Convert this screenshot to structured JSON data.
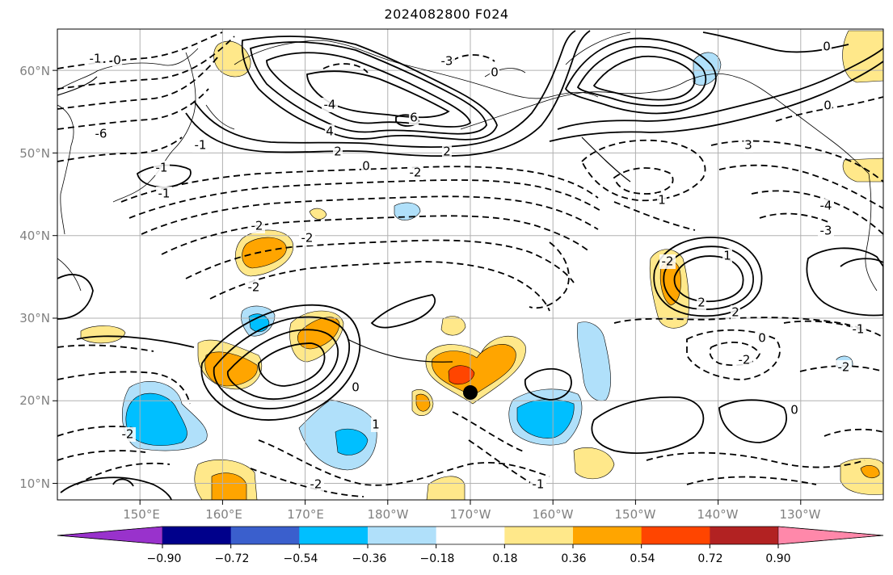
{
  "title": "2024082800 F024",
  "map": {
    "projection": "equirectangular",
    "lon_range_deg_east": [
      140,
      240
    ],
    "lat_range_deg_north": [
      8,
      65
    ],
    "lat_ticks": [
      "10°N",
      "20°N",
      "30°N",
      "40°N",
      "50°N",
      "60°N"
    ],
    "lon_ticks": [
      "150°E",
      "160°E",
      "170°E",
      "180°W",
      "170°W",
      "160°W",
      "150°W",
      "140°W",
      "130°W"
    ],
    "gridlines": true,
    "marker": {
      "lon": 190,
      "lat": 21,
      "color": "#000000"
    },
    "contour_labels": [
      "6",
      "4",
      "2",
      "0",
      "-1",
      "-2",
      "-3",
      "-4",
      "-6",
      "3",
      "2",
      "1",
      "0",
      "-2",
      "-4",
      "-3",
      "-2",
      "1",
      "2",
      "2",
      "0",
      "-2",
      "-2",
      "-1",
      "-1",
      "0",
      "-1",
      "-2",
      "-2",
      "0",
      "0",
      "0",
      "-1",
      "1",
      "-2",
      "-2",
      "0",
      "-1"
    ]
  },
  "colorbar": {
    "tick_labels": [
      "−0.90",
      "−0.72",
      "−0.54",
      "−0.36",
      "−0.18",
      "0.18",
      "0.36",
      "0.54",
      "0.72",
      "0.90"
    ],
    "colors": [
      "#9932cc",
      "#00008b",
      "#3a5fcd",
      "#00bfff",
      "#b0e0fa",
      "#ffffff",
      "#ffe88a",
      "#ffa500",
      "#ff4500",
      "#b22222",
      "#ff88aa"
    ],
    "extend": "both"
  }
}
